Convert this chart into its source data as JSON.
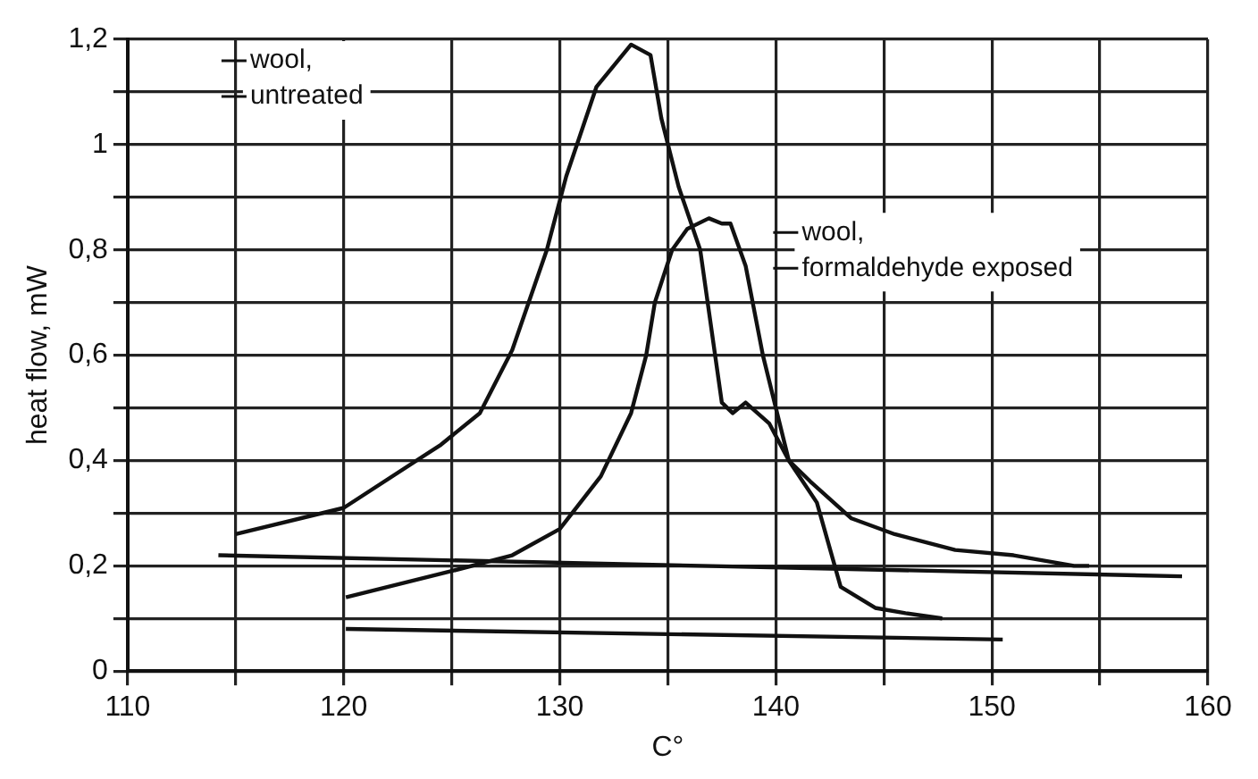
{
  "chart_data": {
    "type": "line",
    "xlabel": "C°",
    "ylabel": "heat flow, mW",
    "xlim": [
      110,
      160
    ],
    "xticks": [
      {
        "value": 110,
        "label": "110"
      },
      {
        "value": 115,
        "label": null
      },
      {
        "value": 120,
        "label": "120"
      },
      {
        "value": 125,
        "label": null
      },
      {
        "value": 130,
        "label": "130"
      },
      {
        "value": 135,
        "label": null
      },
      {
        "value": 140,
        "label": "140"
      },
      {
        "value": 145,
        "label": null
      },
      {
        "value": 150,
        "label": "150"
      },
      {
        "value": 155,
        "label": null
      },
      {
        "value": 160,
        "label": "160"
      }
    ],
    "ylim": [
      0,
      1.2
    ],
    "yticks": [
      {
        "value": 0,
        "label": "0"
      },
      {
        "value": 0.1,
        "label": null
      },
      {
        "value": 0.2,
        "label": "0,2"
      },
      {
        "value": 0.3,
        "label": null
      },
      {
        "value": 0.4,
        "label": "0,4"
      },
      {
        "value": 0.5,
        "label": null
      },
      {
        "value": 0.6,
        "label": "0,6"
      },
      {
        "value": 0.7,
        "label": null
      },
      {
        "value": 0.8,
        "label": "0,8"
      },
      {
        "value": 0.9,
        "label": null
      },
      {
        "value": 1,
        "label": "1"
      },
      {
        "value": 1.1,
        "label": null
      },
      {
        "value": 1.2,
        "label": "1,2"
      }
    ],
    "grid": true,
    "legend": "top left",
    "marker": "none",
    "line_style": "solid",
    "series": [
      {
        "name": "wool, untreated",
        "color": "#111111",
        "x": [
          115,
          120,
          124.5,
          126.3,
          127.8,
          129.4,
          130.3,
          131.7,
          133.3,
          134.2,
          134.7,
          135.5,
          136.5,
          137.5,
          138,
          138.6,
          139.7,
          140.6,
          141.6,
          143.5,
          145.5,
          148.3,
          151,
          153.8,
          154.5
        ],
        "values": [
          0.26,
          0.31,
          0.43,
          0.49,
          0.61,
          0.8,
          0.94,
          1.11,
          1.19,
          1.17,
          1.05,
          0.92,
          0.8,
          0.51,
          0.49,
          0.51,
          0.47,
          0.4,
          0.36,
          0.29,
          0.26,
          0.23,
          0.22,
          0.2,
          0.2
        ]
      },
      {
        "name": "wool, formaldehyde exposed",
        "color": "#111111",
        "x": [
          120.1,
          125,
          127.8,
          130,
          131.9,
          133.3,
          134,
          134.4,
          135.2,
          135.9,
          136.9,
          137.5,
          137.9,
          138.6,
          139.4,
          140.6,
          141.9,
          143,
          144.6,
          146,
          147.7
        ],
        "values": [
          0.14,
          0.19,
          0.22,
          0.27,
          0.37,
          0.49,
          0.6,
          0.7,
          0.8,
          0.84,
          0.86,
          0.85,
          0.85,
          0.77,
          0.6,
          0.4,
          0.32,
          0.16,
          0.12,
          0.11,
          0.1
        ]
      },
      {
        "type": "line",
        "color": "#111111",
        "x": [
          114.2,
          158.8
        ],
        "values": [
          0.22,
          0.18
        ]
      },
      {
        "type": "line",
        "color": "#111111",
        "x": [
          120.1,
          150.5
        ],
        "values": [
          0.08,
          0.06
        ]
      }
    ]
  }
}
